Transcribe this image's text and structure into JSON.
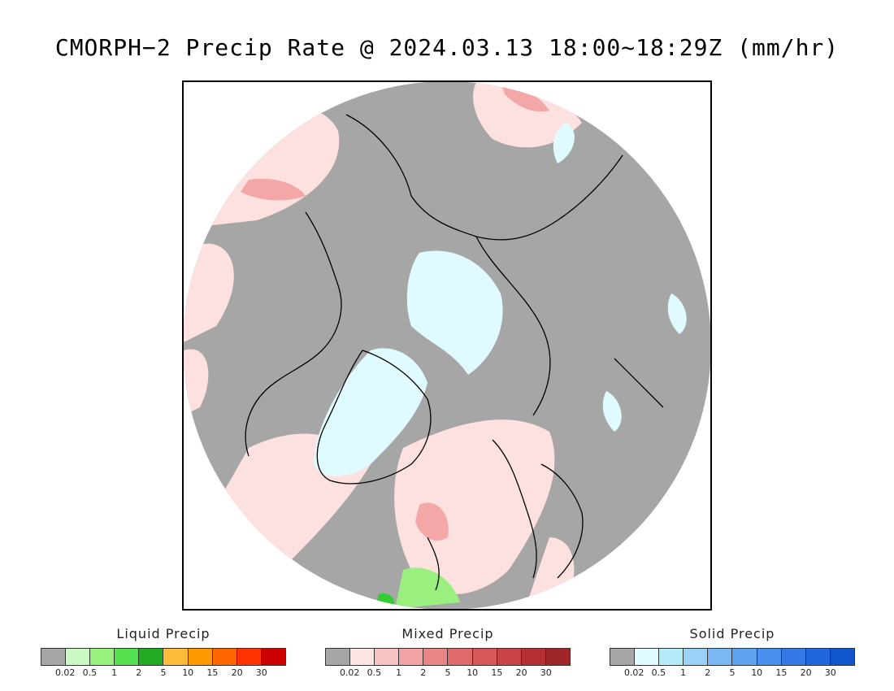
{
  "title": "CMORPH−2 Precip Rate @ 2024.03.13 18:00~18:29Z (mm/hr)",
  "map": {
    "projection": "north polar stereographic",
    "background_colors": {
      "no_precip": "#a6a6a6",
      "mixed_light": "#fde0e0",
      "mixed_moderate": "#f4a7a7",
      "solid_light": "#e0fbff",
      "liquid_light": "#99f07f",
      "liquid_moderate": "#33cc33",
      "coastline": "#000000"
    }
  },
  "legends": [
    {
      "title": "Liquid Precip",
      "colors": [
        "#a6a6a6",
        "#c9fbc0",
        "#98f07f",
        "#55e04f",
        "#22aa22",
        "#fdbc3c",
        "#ff9900",
        "#ff6600",
        "#ff3300",
        "#cc0000"
      ],
      "ticks": [
        "0.02",
        "0.5",
        "1",
        "2",
        "5",
        "10",
        "15",
        "20",
        "30"
      ]
    },
    {
      "title": "Mixed Precip",
      "colors": [
        "#a6a6a6",
        "#fde5e5",
        "#f8c2c2",
        "#f2a2a2",
        "#e98585",
        "#e06a6a",
        "#d55757",
        "#c84444",
        "#b53030",
        "#a02727"
      ],
      "ticks": [
        "0.02",
        "0.5",
        "1",
        "2",
        "5",
        "10",
        "15",
        "20",
        "30"
      ]
    },
    {
      "title": "Solid Precip",
      "colors": [
        "#a6a6a6",
        "#e0fbff",
        "#b5ecfb",
        "#9bd1f8",
        "#7ab8f3",
        "#5fa3ef",
        "#4a8eee",
        "#3479e5",
        "#2266dd",
        "#1155cc"
      ],
      "ticks": [
        "0.02",
        "0.5",
        "1",
        "2",
        "5",
        "10",
        "15",
        "20",
        "30"
      ]
    }
  ]
}
